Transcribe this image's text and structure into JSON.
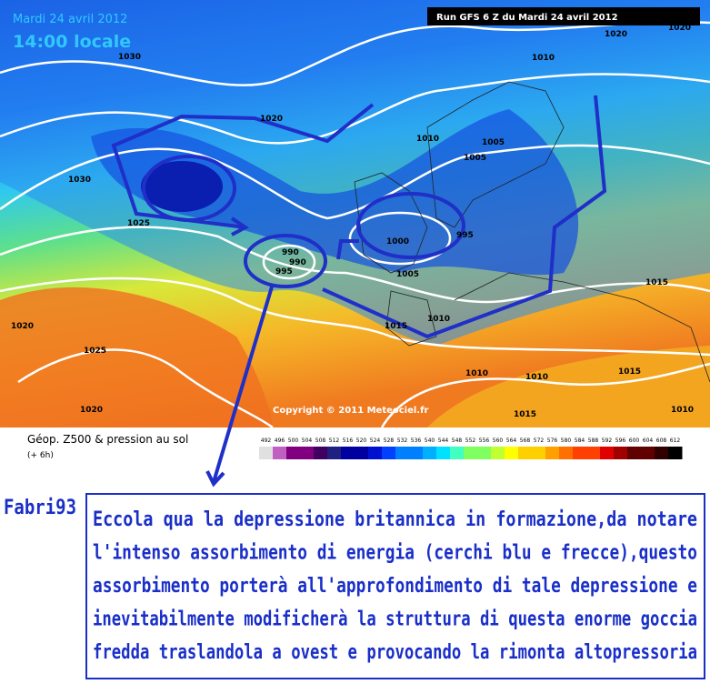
{
  "header": {
    "date": "Mardi 24 avril 2012",
    "time": "14:00 locale",
    "run": "Run GFS 6 Z du Mardi 24 avril 2012"
  },
  "map": {
    "isobar_labels": [
      1030,
      1020,
      1030,
      1025,
      1010,
      1005,
      1005,
      1010,
      1020,
      1000,
      995,
      990,
      990,
      995,
      1005,
      1015,
      1010,
      1020,
      1025,
      1020,
      1015,
      1010,
      1010,
      1015,
      1020,
      1010,
      1015
    ],
    "copyright": "Copyright © 2011 Meteociel.fr"
  },
  "legend": {
    "title": "Géop. Z500 & pression au sol",
    "step": "(+ 6h)",
    "scale": [
      492,
      496,
      500,
      504,
      508,
      512,
      516,
      520,
      524,
      528,
      532,
      536,
      540,
      544,
      548,
      552,
      556,
      560,
      564,
      568,
      572,
      576,
      580,
      584,
      588,
      592,
      596,
      600,
      604,
      608,
      612
    ]
  },
  "comment": {
    "author": "Fabri93",
    "lines": [
      "Eccola qua la depressione britannica in formazione,da notare",
      "l'intenso assorbimento di energia (cerchi blu e frecce),questo",
      "assorbimento porterà all'approfondimento di tale depressione e",
      "inevitabilmente modificherà la struttura di questa enorme goccia",
      "fredda traslandola a ovest e provocando la rimonta altopressoria"
    ]
  }
}
